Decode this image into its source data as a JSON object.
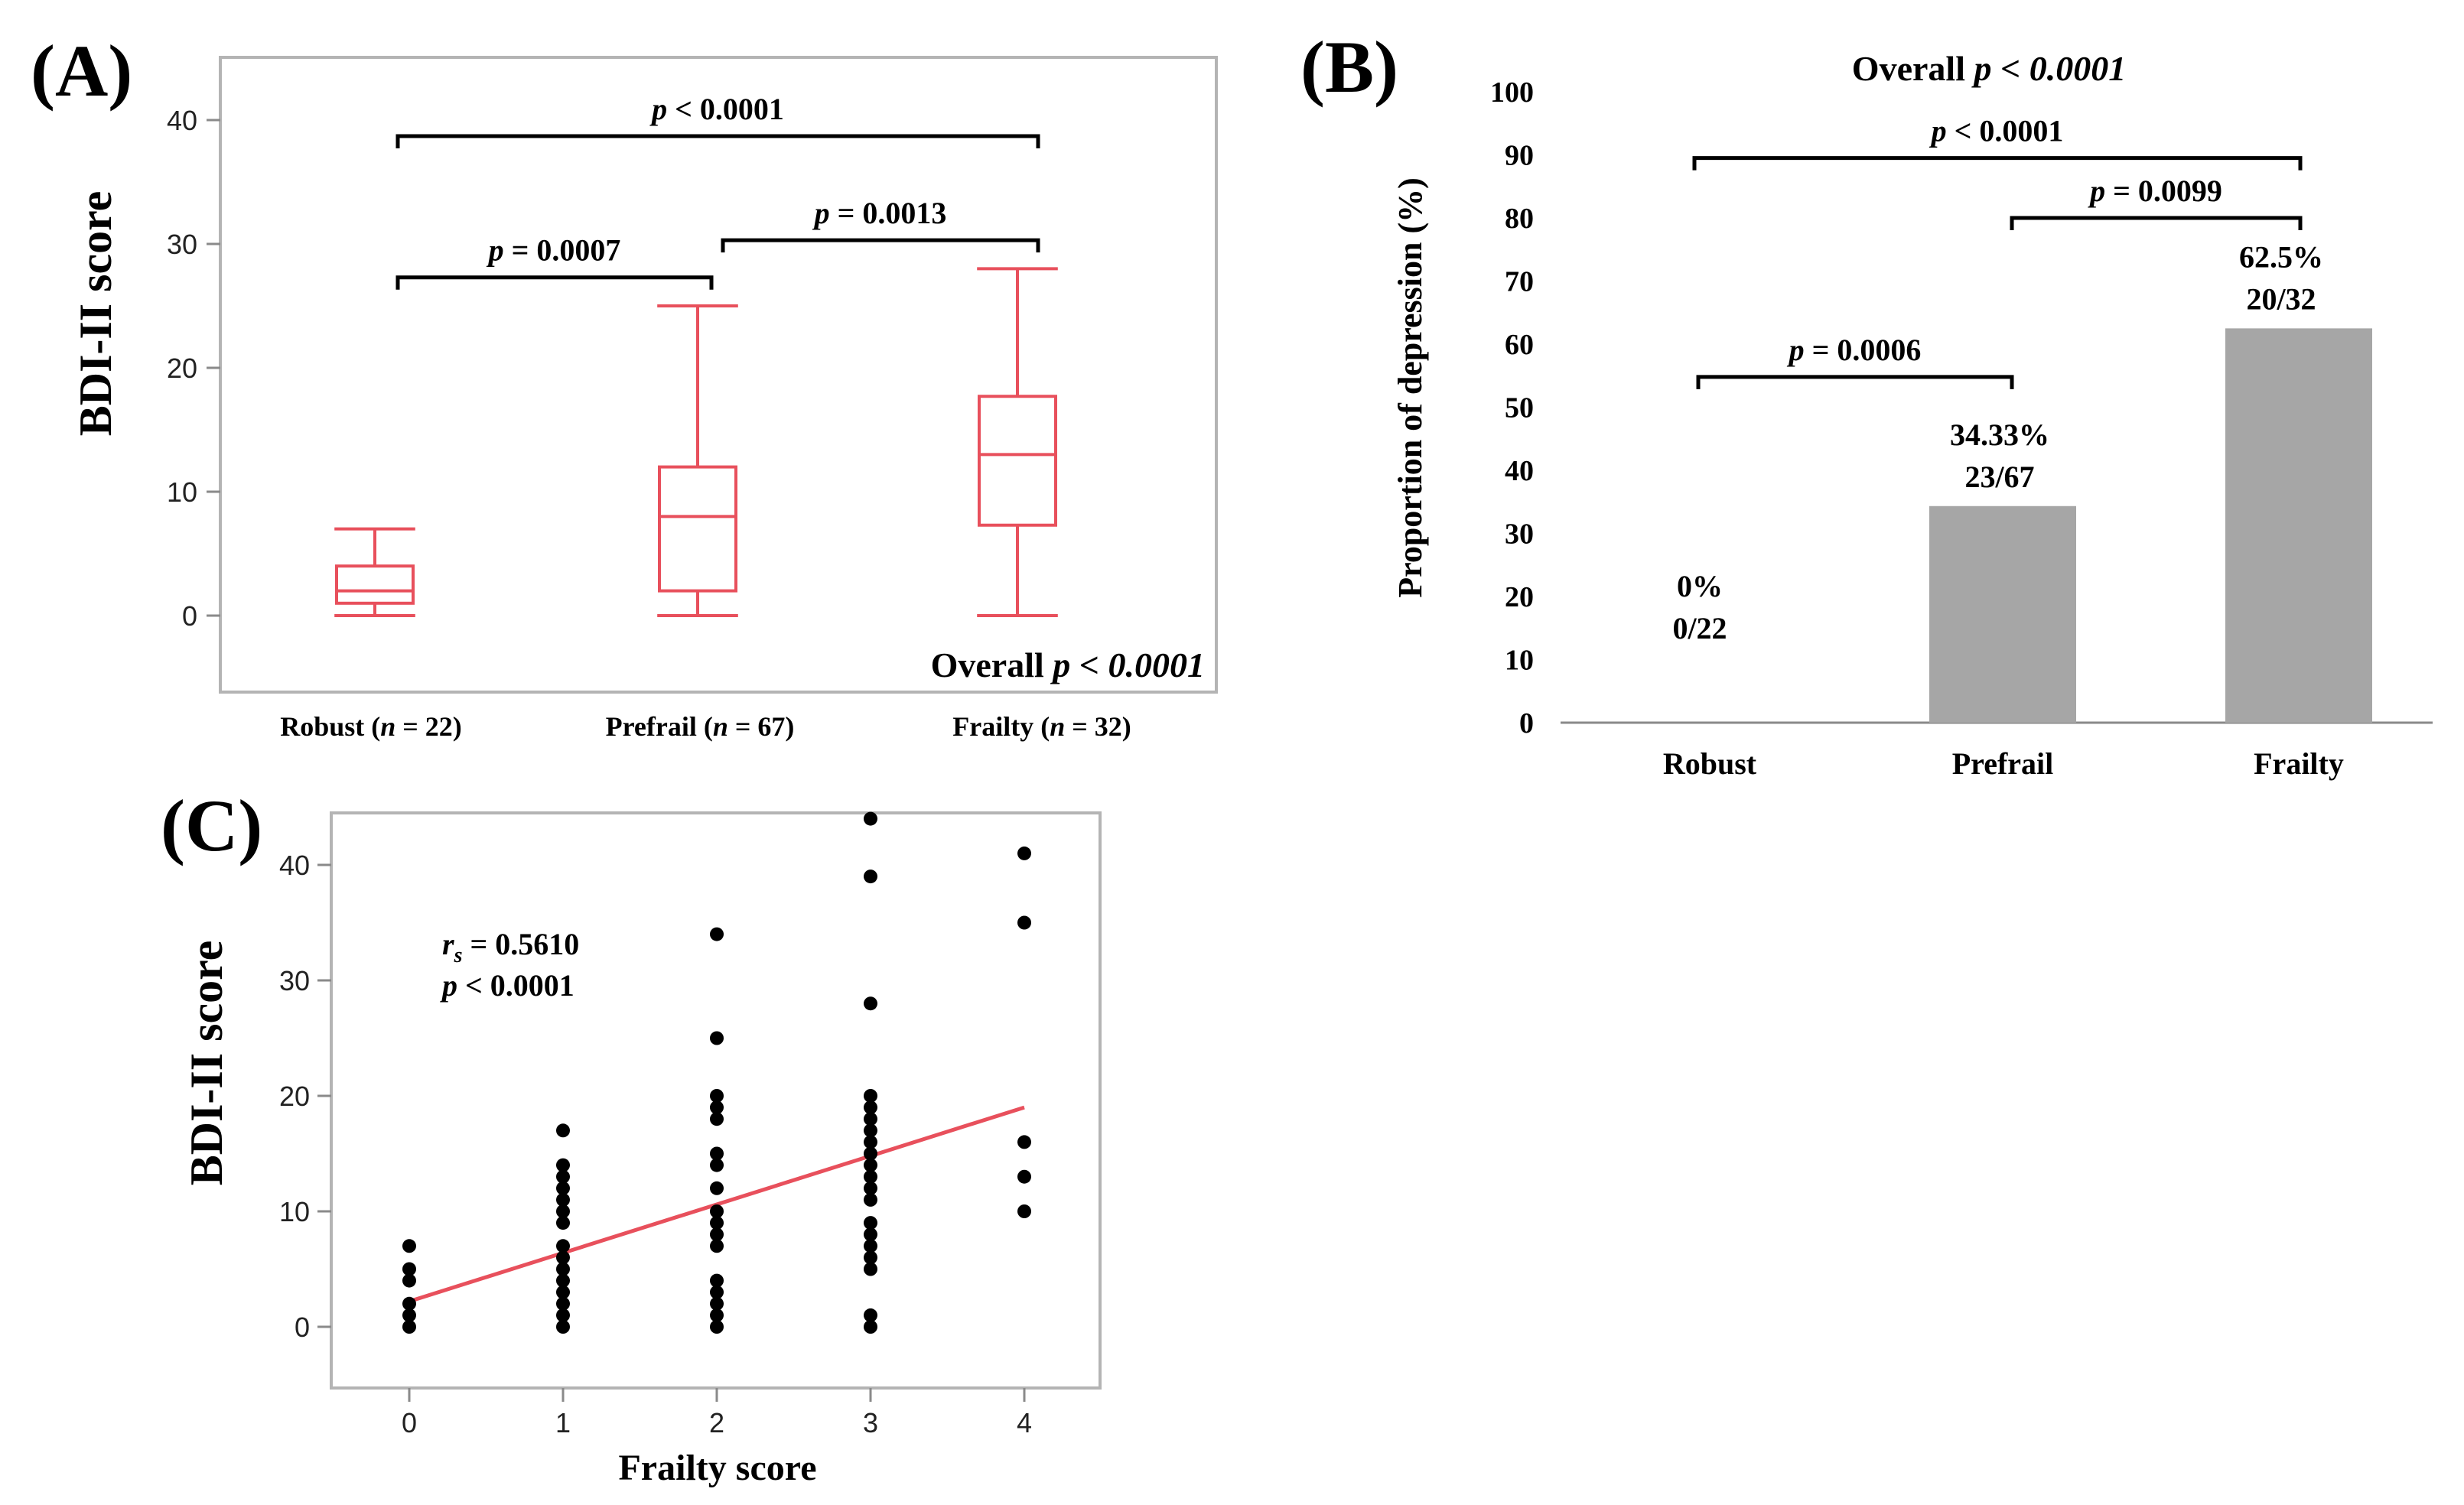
{
  "chart_data": [
    {
      "panel": "(A)",
      "type": "box",
      "ylabel": "BDI-II score",
      "ylim": [
        -5,
        45
      ],
      "yticks": [
        0,
        10,
        20,
        30,
        40
      ],
      "overall_label": "Overall",
      "overall_p": "p < 0.0001",
      "categories": [
        {
          "label": "Robust (n = 22)",
          "label_head": "Robust (",
          "label_n": "n",
          "label_tail": " = 22)",
          "min": 0,
          "q1": 1,
          "median": 2,
          "q3": 4,
          "max": 7
        },
        {
          "label": "Prefrail (n = 67)",
          "label_head": "Prefrail (",
          "label_n": "n",
          "label_tail": " = 67)",
          "min": 0,
          "q1": 2,
          "median": 8,
          "q3": 12,
          "max": 25
        },
        {
          "label": "Frailty (n = 32)",
          "label_head": "Frailty (",
          "label_n": "n",
          "label_tail": " = 32)",
          "min": 0,
          "q1": 7.3,
          "median": 13,
          "q3": 17.7,
          "max": 28
        }
      ],
      "comparisons": [
        {
          "from": 0,
          "to": 2,
          "y": 38.7,
          "p_sym": "p",
          "p_rest": " < 0.0001"
        },
        {
          "from": 0,
          "to": 1,
          "y": 27.3,
          "p_sym": "p",
          "p_rest": " = 0.0007"
        },
        {
          "from": 1,
          "to": 2,
          "y": 30.3,
          "p_sym": "p",
          "p_rest": " = 0.0013"
        }
      ]
    },
    {
      "panel": "(B)",
      "type": "bar",
      "ylabel": "Proportion of depression (%)",
      "ylim": [
        0,
        100
      ],
      "yticks": [
        0,
        10,
        20,
        30,
        40,
        50,
        60,
        70,
        80,
        90,
        100
      ],
      "categories": [
        "Robust",
        "Prefrail",
        "Frailty"
      ],
      "values": [
        0,
        34.33,
        62.5
      ],
      "data_labels": [
        {
          "pct": "0%",
          "count": "0/22"
        },
        {
          "pct": "34.33%",
          "count": "23/67"
        },
        {
          "pct": "62.5%",
          "count": "20/32"
        }
      ],
      "title_prefix": "Overall",
      "title_p": "p < 0.0001",
      "comparisons": [
        {
          "from": 0,
          "to": 2,
          "y": 89.5,
          "p_sym": "p",
          "p_rest": " < 0.0001"
        },
        {
          "from": 1,
          "to": 2,
          "y": 80,
          "p_sym": "p",
          "p_rest": " = 0.0099"
        },
        {
          "from": 0,
          "to": 1,
          "y": 54.8,
          "p_sym": "p",
          "p_rest": " = 0.0006"
        }
      ]
    },
    {
      "panel": "(C)",
      "type": "scatter",
      "xlabel": "Frailty score",
      "ylabel": "BDI-II score",
      "xlim": [
        -0.5,
        4.5
      ],
      "ylim": [
        -5,
        45
      ],
      "xticks": [
        0,
        1,
        2,
        3,
        4
      ],
      "yticks": [
        0,
        10,
        20,
        30,
        40
      ],
      "points": [
        [
          0,
          0
        ],
        [
          0,
          1
        ],
        [
          0,
          2
        ],
        [
          0,
          4
        ],
        [
          0,
          5
        ],
        [
          0,
          7
        ],
        [
          1,
          0
        ],
        [
          1,
          1
        ],
        [
          1,
          2
        ],
        [
          1,
          3
        ],
        [
          1,
          4
        ],
        [
          1,
          5
        ],
        [
          1,
          6
        ],
        [
          1,
          7
        ],
        [
          1,
          9
        ],
        [
          1,
          10
        ],
        [
          1,
          11
        ],
        [
          1,
          12
        ],
        [
          1,
          13
        ],
        [
          1,
          14
        ],
        [
          1,
          17
        ],
        [
          2,
          0
        ],
        [
          2,
          1
        ],
        [
          2,
          2
        ],
        [
          2,
          3
        ],
        [
          2,
          4
        ],
        [
          2,
          7
        ],
        [
          2,
          8
        ],
        [
          2,
          9
        ],
        [
          2,
          10
        ],
        [
          2,
          12
        ],
        [
          2,
          14
        ],
        [
          2,
          15
        ],
        [
          2,
          18
        ],
        [
          2,
          19
        ],
        [
          2,
          20
        ],
        [
          2,
          25
        ],
        [
          2,
          34
        ],
        [
          3,
          0
        ],
        [
          3,
          1
        ],
        [
          3,
          5
        ],
        [
          3,
          6
        ],
        [
          3,
          7
        ],
        [
          3,
          8
        ],
        [
          3,
          9
        ],
        [
          3,
          11
        ],
        [
          3,
          12
        ],
        [
          3,
          13
        ],
        [
          3,
          14
        ],
        [
          3,
          15
        ],
        [
          3,
          16
        ],
        [
          3,
          17
        ],
        [
          3,
          18
        ],
        [
          3,
          19
        ],
        [
          3,
          20
        ],
        [
          3,
          28
        ],
        [
          3,
          39
        ],
        [
          3,
          44
        ],
        [
          4,
          10
        ],
        [
          4,
          13
        ],
        [
          4,
          16
        ],
        [
          4,
          35
        ],
        [
          4,
          41
        ]
      ],
      "fit": {
        "x": [
          0,
          4
        ],
        "y": [
          2.2,
          19
        ]
      },
      "rs_sym": "r",
      "rs_sub": "s",
      "rs_rest": " = 0.5610",
      "p_sym": "p",
      "p_rest": " < 0.0001"
    }
  ]
}
